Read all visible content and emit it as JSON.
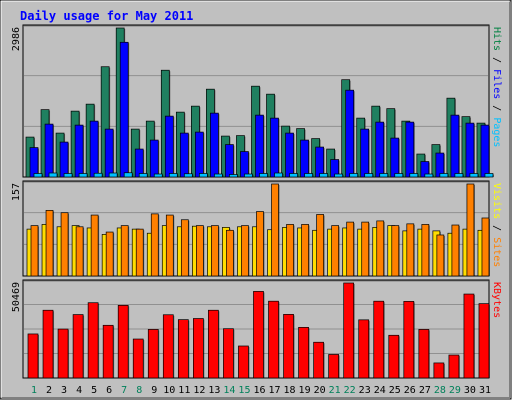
{
  "chart_data": [
    {
      "type": "bar",
      "panel": "hits-files-pages",
      "title": "Daily usage for May 2011",
      "max_label": "2986",
      "ymax": 2986,
      "categories": [
        "1",
        "2",
        "3",
        "4",
        "5",
        "6",
        "7",
        "8",
        "9",
        "10",
        "11",
        "12",
        "13",
        "14",
        "15",
        "16",
        "17",
        "18",
        "19",
        "20",
        "21",
        "22",
        "23",
        "24",
        "25",
        "26",
        "27",
        "28",
        "29",
        "30",
        "31"
      ],
      "weekend_days": [
        "1",
        "7",
        "8",
        "14",
        "15",
        "21",
        "22",
        "28",
        "29"
      ],
      "axis_labels": [
        {
          "text": "Pages",
          "color": "#00c0ff"
        },
        {
          "text": "Files",
          "color": "#0000ff"
        },
        {
          "text": "Hits",
          "color": "#008040"
        }
      ],
      "series": [
        {
          "name": "Hits",
          "color": "#208060",
          "values": [
            800,
            1350,
            880,
            1320,
            1460,
            2210,
            2986,
            960,
            1120,
            2140,
            1300,
            1420,
            1760,
            820,
            830,
            1820,
            1660,
            1020,
            970,
            770,
            560,
            1950,
            1180,
            1420,
            1370,
            1120,
            460,
            650,
            1580,
            1210,
            1080
          ]
        },
        {
          "name": "Files",
          "color": "#0000ff",
          "values": [
            590,
            1060,
            700,
            1040,
            1120,
            960,
            2700,
            560,
            740,
            1220,
            880,
            900,
            1280,
            650,
            510,
            1240,
            1180,
            880,
            740,
            600,
            350,
            1740,
            960,
            1100,
            780,
            1100,
            310,
            480,
            1240,
            1080,
            1040
          ]
        },
        {
          "name": "Pages",
          "color": "#00c0ff",
          "values": [
            70,
            80,
            70,
            70,
            75,
            80,
            85,
            70,
            60,
            70,
            65,
            70,
            60,
            50,
            60,
            70,
            80,
            70,
            70,
            70,
            60,
            70,
            70,
            70,
            70,
            70,
            60,
            70,
            70,
            70,
            70
          ]
        }
      ]
    },
    {
      "type": "bar",
      "panel": "visits-sites",
      "max_label": "157",
      "ymax": 157,
      "axis_labels": [
        {
          "text": "Sites",
          "color": "#ff8000"
        },
        {
          "text": "Visits",
          "color": "#ffff00"
        }
      ],
      "series": [
        {
          "name": "Visits",
          "color": "#ffdd00",
          "values": [
            80,
            88,
            84,
            86,
            82,
            71,
            82,
            80,
            73,
            86,
            84,
            85,
            84,
            83,
            84,
            84,
            79,
            83,
            82,
            78,
            80,
            82,
            80,
            83,
            86,
            77,
            80,
            77,
            73,
            80,
            78
          ]
        },
        {
          "name": "Sites",
          "color": "#ff8000",
          "values": [
            86,
            112,
            108,
            84,
            104,
            75,
            86,
            80,
            106,
            104,
            96,
            86,
            86,
            78,
            86,
            110,
            157,
            88,
            88,
            105,
            86,
            92,
            92,
            94,
            86,
            89,
            88,
            70,
            87,
            157,
            99
          ]
        }
      ]
    },
    {
      "type": "bar",
      "panel": "kbytes",
      "max_label": "50469",
      "ymax": 50469,
      "axis_labels": [
        {
          "text": "KBytes",
          "color": "#ff0000"
        }
      ],
      "series": [
        {
          "name": "KBytes",
          "color": "#ff0000",
          "values": [
            23400,
            36000,
            26000,
            33700,
            40000,
            28000,
            38600,
            20700,
            25800,
            33600,
            31000,
            31600,
            36000,
            26200,
            17000,
            46000,
            40800,
            33800,
            26900,
            19000,
            12500,
            50469,
            30900,
            40800,
            22700,
            40700,
            25800,
            8000,
            12200,
            44600,
            39500
          ]
        }
      ]
    }
  ]
}
